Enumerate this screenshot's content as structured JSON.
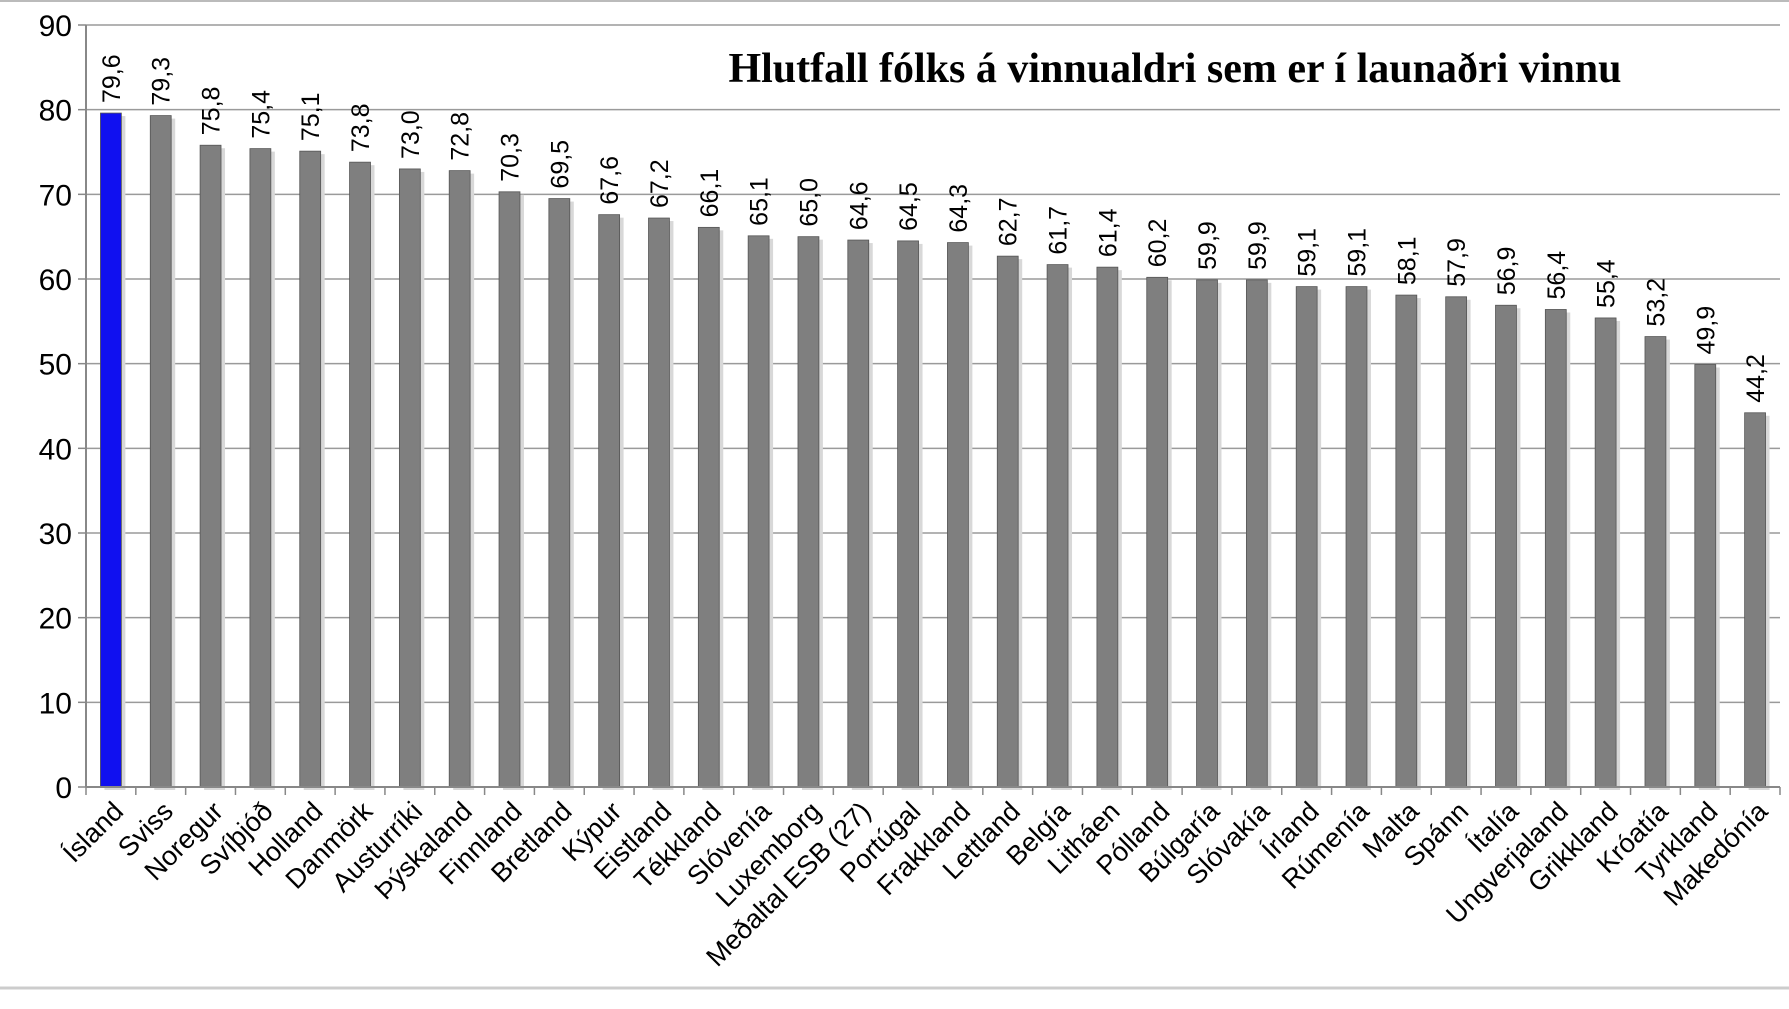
{
  "chart_data": {
    "type": "bar",
    "title": "Hlutfall fólks á vinnualdri sem er í launaðri vinnu",
    "categories": [
      "Ísland",
      "Sviss",
      "Noregur",
      "Svíþjóð",
      "Holland",
      "Danmörk",
      "Austurríki",
      "Þýskaland",
      "Finnland",
      "Bretland",
      "Kýpur",
      "Eistland",
      "Tékkland",
      "Slóvenía",
      "Luxemborg",
      "Meðaltal ESB (27)",
      "Portúgal",
      "Frakkland",
      "Lettland",
      "Belgía",
      "Litháen",
      "Pólland",
      "Búlgaría",
      "Slóvakía",
      "Írland",
      "Rúmenía",
      "Malta",
      "Spánn",
      "Ítalía",
      "Ungverjaland",
      "Grikkland",
      "Króatía",
      "Tyrkland",
      "Makedónía"
    ],
    "values": [
      79.6,
      79.3,
      75.8,
      75.4,
      75.1,
      73.8,
      73.0,
      72.8,
      70.3,
      69.5,
      67.6,
      67.2,
      66.1,
      65.1,
      65.0,
      64.6,
      64.5,
      64.3,
      62.7,
      61.7,
      61.4,
      60.2,
      59.9,
      59.9,
      59.1,
      59.1,
      58.1,
      57.9,
      56.9,
      56.4,
      55.4,
      53.2,
      49.9,
      44.2
    ],
    "value_labels": [
      "79,6",
      "79,3",
      "75,8",
      "75,4",
      "75,1",
      "73,8",
      "73,0",
      "72,8",
      "70,3",
      "69,5",
      "67,6",
      "67,2",
      "66,1",
      "65,1",
      "65,0",
      "64,6",
      "64,5",
      "64,3",
      "62,7",
      "61,7",
      "61,4",
      "60,2",
      "59,9",
      "59,9",
      "59,1",
      "59,1",
      "58,1",
      "57,9",
      "56,9",
      "56,4",
      "55,4",
      "53,2",
      "49,9",
      "44,2"
    ],
    "colors": [
      "#1010f0",
      "#7f7f7f",
      "#7f7f7f",
      "#7f7f7f",
      "#7f7f7f",
      "#7f7f7f",
      "#7f7f7f",
      "#7f7f7f",
      "#7f7f7f",
      "#7f7f7f",
      "#7f7f7f",
      "#7f7f7f",
      "#7f7f7f",
      "#7f7f7f",
      "#7f7f7f",
      "#7f7f7f",
      "#7f7f7f",
      "#7f7f7f",
      "#7f7f7f",
      "#7f7f7f",
      "#7f7f7f",
      "#7f7f7f",
      "#7f7f7f",
      "#7f7f7f",
      "#7f7f7f",
      "#7f7f7f",
      "#7f7f7f",
      "#7f7f7f",
      "#7f7f7f",
      "#7f7f7f",
      "#7f7f7f",
      "#7f7f7f",
      "#7f7f7f",
      "#7f7f7f"
    ],
    "ylim": [
      0,
      90
    ],
    "yticks": [
      0,
      10,
      20,
      30,
      40,
      50,
      60,
      70,
      80,
      90
    ],
    "grid": true
  }
}
